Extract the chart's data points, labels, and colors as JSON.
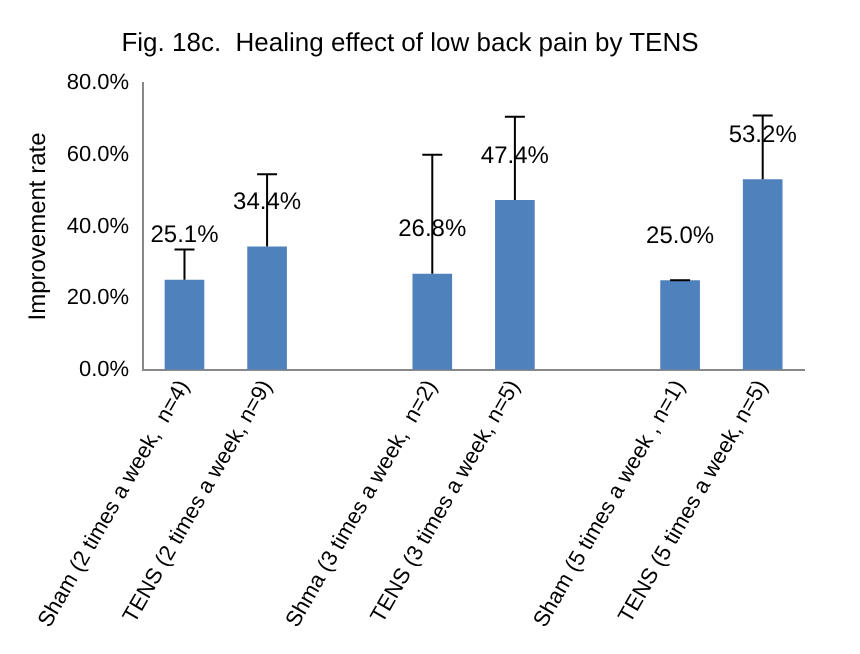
{
  "chart_data": {
    "type": "bar",
    "title": "Fig. 18c.  Healing effect of low back pain by TENS",
    "ylabel": "Improvement rate",
    "categories": [
      "Sham (2 times a week,  n=4)",
      "TENS (2 times a week, n=9)",
      null,
      "Shma (3 times a week,  n=2)",
      "TENS (3 times a week, n=5)",
      null,
      "Sham (5 times a week , n=1)",
      "TENS (5 times a week, n=5)"
    ],
    "values": [
      25.1,
      34.4,
      null,
      26.8,
      47.4,
      null,
      25.0,
      53.2
    ],
    "errors": [
      [
        25.1,
        33.6
      ],
      [
        34.4,
        54.6
      ],
      null,
      [
        26.8,
        60.0
      ],
      [
        47.4,
        70.6
      ],
      null,
      [
        25.0,
        25.0
      ],
      [
        53.2,
        71.0
      ]
    ],
    "value_labels": [
      "25.1%",
      "34.4%",
      null,
      "26.8%",
      "47.4%",
      null,
      "25.0%",
      "53.2%"
    ],
    "color": "#4f81bd",
    "ylim": [
      0,
      80
    ],
    "yticks": [
      {
        "value": 0,
        "label": "0.0%"
      },
      {
        "value": 20,
        "label": "20.0%"
      },
      {
        "value": 40,
        "label": "40.0%"
      },
      {
        "value": 60,
        "label": "60.0%"
      },
      {
        "value": 80,
        "label": "80.0%"
      }
    ],
    "grid": false,
    "legend": false
  }
}
